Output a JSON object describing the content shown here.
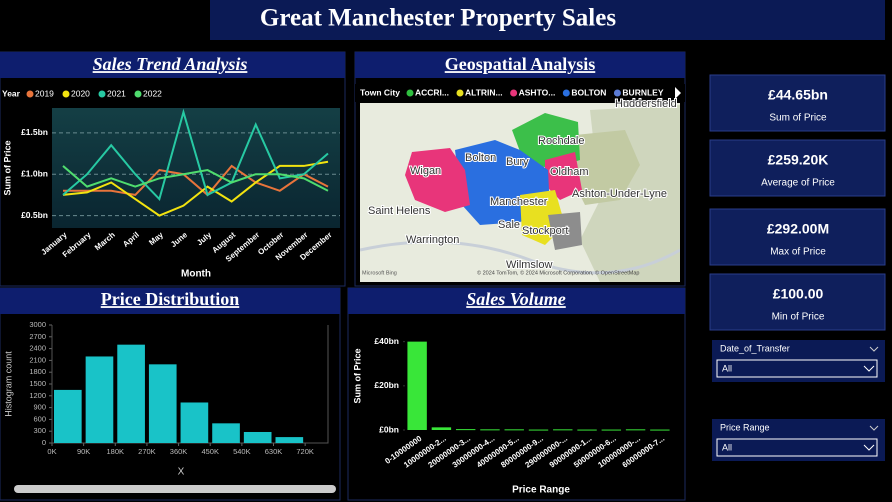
{
  "header": {
    "title": "Great Manchester Property Sales"
  },
  "chart_data": [
    {
      "type": "line",
      "title": "Sales Trend Analysis",
      "legend_title": "Year",
      "x_label": "Month",
      "y_label": "Sum of Price",
      "categories": [
        "January",
        "February",
        "March",
        "April",
        "May",
        "June",
        "July",
        "August",
        "September",
        "October",
        "November",
        "December"
      ],
      "series": [
        {
          "name": "2019",
          "color": "#e8743b",
          "values": [
            0.8,
            0.8,
            0.8,
            0.75,
            1.05,
            1.0,
            0.75,
            1.1,
            0.9,
            0.8,
            1.0,
            0.85
          ]
        },
        {
          "name": "2020",
          "color": "#f2e30f",
          "values": [
            0.75,
            0.78,
            0.9,
            0.7,
            0.5,
            0.62,
            0.85,
            0.67,
            0.9,
            1.1,
            1.1,
            1.15
          ]
        },
        {
          "name": "2021",
          "color": "#27c9a3",
          "values": [
            0.75,
            1.0,
            1.35,
            1.0,
            0.7,
            1.75,
            0.75,
            0.9,
            1.6,
            0.95,
            1.0,
            1.25
          ]
        },
        {
          "name": "2022",
          "color": "#4fdc6e",
          "values": [
            1.1,
            0.85,
            0.95,
            0.85,
            0.95,
            1.0,
            1.05,
            0.9,
            1.0,
            1.0,
            0.95,
            0.8
          ]
        }
      ],
      "ylim": [
        0.35,
        1.8
      ],
      "yticks": [
        {
          "value": 0.5,
          "label": "£0.5bn"
        },
        {
          "value": 1.0,
          "label": "£1.0bn"
        },
        {
          "value": 1.5,
          "label": "£1.5bn"
        }
      ],
      "grid": true
    },
    {
      "type": "histogram",
      "title": "Price Distribution",
      "x_label": "X",
      "y_label": "Histogram count",
      "bins": [
        0,
        90000,
        180000,
        270000,
        360000,
        450000,
        540000,
        630000,
        720000
      ],
      "values": [
        1350,
        2200,
        2500,
        2000,
        1030,
        500,
        280,
        150
      ],
      "color": "#19c3c8",
      "xlim": [
        0,
        785000
      ],
      "xticks": [
        {
          "value": 0,
          "label": "0K"
        },
        {
          "value": 90000,
          "label": "90K"
        },
        {
          "value": 180000,
          "label": "180K"
        },
        {
          "value": 270000,
          "label": "270K"
        },
        {
          "value": 360000,
          "label": "360K"
        },
        {
          "value": 450000,
          "label": "450K"
        },
        {
          "value": 540000,
          "label": "540K"
        },
        {
          "value": 630000,
          "label": "630K"
        },
        {
          "value": 720000,
          "label": "720K"
        }
      ],
      "ylim": [
        0,
        3000
      ],
      "yticks": [
        0,
        300,
        600,
        900,
        1200,
        1500,
        1800,
        2100,
        2400,
        2700,
        3000
      ]
    },
    {
      "type": "bar",
      "title": "Sales Volume",
      "x_label": "Price Range",
      "y_label": "Sum of Price",
      "categories": [
        "0-10000000",
        "10000000-2...",
        "20000000-3...",
        "30000000-4...",
        "40000000-5...",
        "80000000-9...",
        "290000000-...",
        "90000000-1...",
        "50000000-6...",
        "100000000-...",
        "60000000-7..."
      ],
      "values": [
        40,
        1.2,
        0.4,
        0.3,
        0.3,
        0.2,
        0.3,
        0.2,
        0.2,
        0.3,
        0.2
      ],
      "color": "#39e639",
      "ylim": [
        0,
        43
      ],
      "yticks": [
        {
          "value": 0,
          "label": "£0bn"
        },
        {
          "value": 20,
          "label": "£20bn"
        },
        {
          "value": 40,
          "label": "£40bn"
        }
      ]
    }
  ],
  "map": {
    "title": "Geospatial Analysis",
    "legend_title": "Town City",
    "legend": [
      {
        "name": "ACCRI...",
        "color": "#2fbf3f"
      },
      {
        "name": "ALTRIN...",
        "color": "#e8e020"
      },
      {
        "name": "ASHTO...",
        "color": "#e8357a"
      },
      {
        "name": "BOLTON",
        "color": "#2a6fe0"
      },
      {
        "name": "BURNLEY",
        "color": "#5b7bd5"
      }
    ],
    "places": [
      "Huddersfield",
      "Rochdale",
      "Bolton",
      "Bury",
      "Oldham",
      "Wigan",
      "Manchester",
      "Ashton-Under-Lyne",
      "Saint Helens",
      "Sale",
      "Stockport",
      "Warrington",
      "Wilmslow"
    ],
    "logo": "Microsoft Bing",
    "attribution": "© 2024 TomTom, © 2024 Microsoft Corporation, © OpenStreetMap"
  },
  "kpis": [
    {
      "value": "£44.65bn",
      "label": "Sum of Price"
    },
    {
      "value": "£259.20K",
      "label": "Average of Price"
    },
    {
      "value": "£292.00M",
      "label": "Max of Price"
    },
    {
      "value": "£100.00",
      "label": "Min of Price"
    }
  ],
  "slicers": [
    {
      "label": "Date_of_Transfer",
      "selection": "All"
    },
    {
      "label": "Price Range",
      "selection": "All"
    }
  ]
}
